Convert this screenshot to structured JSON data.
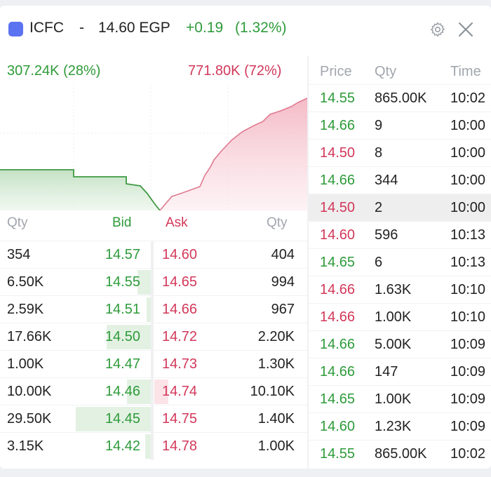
{
  "colors": {
    "accent": "#5b73f0",
    "bid_green": "#2e9b3a",
    "ask_red": "#d2385a",
    "muted": "#a2a6ad"
  },
  "header": {
    "symbol": "ICFC",
    "separator": "-",
    "price": "14.60 EGP",
    "change": "+0.19",
    "change_pct": "(1.32%)",
    "settings_icon": "gear-icon",
    "close_icon": "close-icon"
  },
  "depth": {
    "bid_volume": "307.24K (28%)",
    "ask_volume": "771.80K (72%)"
  },
  "orderbook": {
    "headers": {
      "bid_qty": "Qty",
      "bid": "Bid",
      "ask": "Ask",
      "ask_qty": "Qty"
    },
    "rows": [
      {
        "bid_qty": "354",
        "bid": "14.57",
        "ask": "14.60",
        "ask_qty": "404",
        "bid_fill": 0.0,
        "ask_fill": 0.0
      },
      {
        "bid_qty": "6.50K",
        "bid": "14.55",
        "ask": "14.65",
        "ask_qty": "994",
        "bid_fill": 0.2,
        "ask_fill": 0.0
      },
      {
        "bid_qty": "2.59K",
        "bid": "14.51",
        "ask": "14.66",
        "ask_qty": "967",
        "bid_fill": 0.08,
        "ask_fill": 0.0
      },
      {
        "bid_qty": "17.66K",
        "bid": "14.50",
        "ask": "14.72",
        "ask_qty": "2.20K",
        "bid_fill": 0.6,
        "ask_fill": 0.0
      },
      {
        "bid_qty": "1.00K",
        "bid": "14.47",
        "ask": "14.73",
        "ask_qty": "1.30K",
        "bid_fill": 0.03,
        "ask_fill": 0.0
      },
      {
        "bid_qty": "10.00K",
        "bid": "14.46",
        "ask": "14.74",
        "ask_qty": "10.10K",
        "bid_fill": 0.34,
        "ask_fill": 0.18
      },
      {
        "bid_qty": "29.50K",
        "bid": "14.45",
        "ask": "14.75",
        "ask_qty": "1.40K",
        "bid_fill": 1.0,
        "ask_fill": 0.0
      },
      {
        "bid_qty": "3.15K",
        "bid": "14.42",
        "ask": "14.78",
        "ask_qty": "1.00K",
        "bid_fill": 0.1,
        "ask_fill": 0.0
      }
    ]
  },
  "trades": {
    "headers": {
      "price": "Price",
      "qty": "Qty",
      "time": "Time"
    },
    "rows": [
      {
        "price": "14.55",
        "qty": "865.00K",
        "time": "10:02",
        "side": "buy"
      },
      {
        "price": "14.66",
        "qty": "9",
        "time": "10:00",
        "side": "buy"
      },
      {
        "price": "14.50",
        "qty": "8",
        "time": "10:00",
        "side": "sell"
      },
      {
        "price": "14.66",
        "qty": "344",
        "time": "10:00",
        "side": "buy"
      },
      {
        "price": "14.50",
        "qty": "2",
        "time": "10:00",
        "side": "sell",
        "highlight": true
      },
      {
        "price": "14.60",
        "qty": "596",
        "time": "10:13",
        "side": "sell"
      },
      {
        "price": "14.65",
        "qty": "6",
        "time": "10:13",
        "side": "buy"
      },
      {
        "price": "14.66",
        "qty": "1.63K",
        "time": "10:10",
        "side": "sell"
      },
      {
        "price": "14.66",
        "qty": "1.00K",
        "time": "10:10",
        "side": "sell"
      },
      {
        "price": "14.66",
        "qty": "5.00K",
        "time": "10:09",
        "side": "buy"
      },
      {
        "price": "14.66",
        "qty": "147",
        "time": "10:09",
        "side": "buy"
      },
      {
        "price": "14.65",
        "qty": "1.00K",
        "time": "10:09",
        "side": "buy"
      },
      {
        "price": "14.60",
        "qty": "1.23K",
        "time": "10:09",
        "side": "buy"
      },
      {
        "price": "14.55",
        "qty": "865.00K",
        "time": "10:02",
        "side": "buy"
      }
    ]
  }
}
